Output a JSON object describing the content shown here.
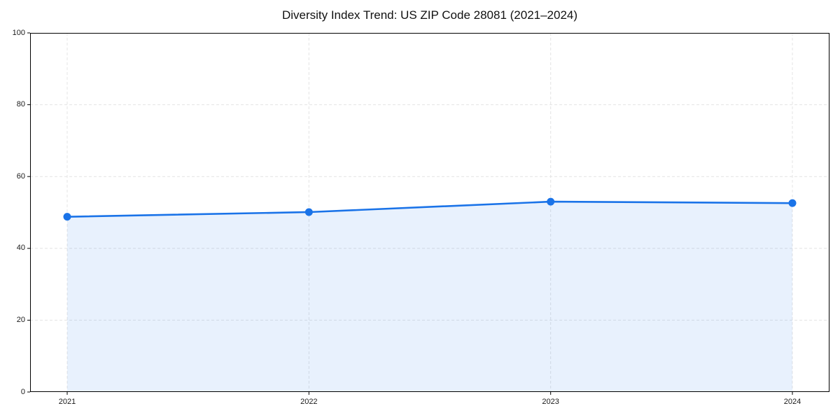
{
  "chart_data": {
    "type": "area",
    "title": "Diversity Index Trend: US ZIP Code 28081 (2021–2024)",
    "categories": [
      "2021",
      "2022",
      "2023",
      "2024"
    ],
    "series": [
      {
        "name": "Diversity Index",
        "values": [
          48.8,
          50.1,
          53.0,
          52.6
        ]
      }
    ],
    "xlabel": "",
    "ylabel": "",
    "ylim": [
      0,
      100
    ],
    "yticks": [
      0,
      20,
      40,
      60,
      80,
      100
    ],
    "grid": "dashed horizontal and vertical gridlines",
    "legend_position": "none",
    "colors": {
      "line": "#1a73e8",
      "marker": "#1a73e8",
      "area_fill": "rgba(26,115,232,0.10)",
      "grid_line": "#e4e4e4",
      "spine": "#000000",
      "tick_label": "#1a1a1a",
      "background": "#ffffff"
    }
  }
}
